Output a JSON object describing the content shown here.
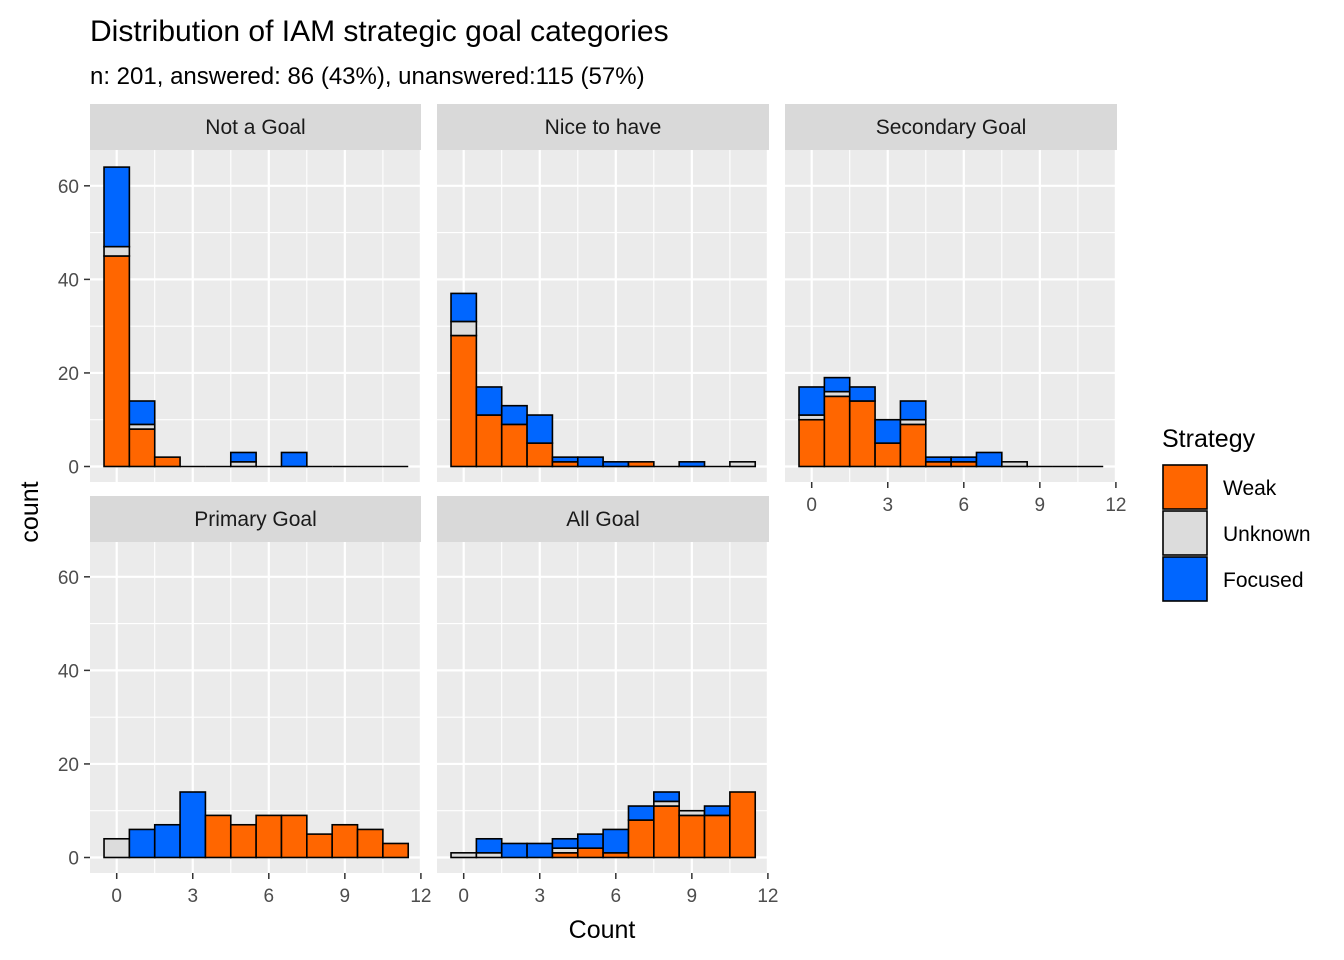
{
  "chart_data": {
    "type": "bar",
    "title": "Distribution of IAM strategic goal categories",
    "subtitle": "n: 201, answered: 86 (43%), unanswered:115 (57%)",
    "xlabel": "Count",
    "ylabel": "count",
    "x_ticks": [
      "0",
      "3",
      "6",
      "9",
      "12"
    ],
    "y_ticks": [
      "0",
      "20",
      "40",
      "60"
    ],
    "xlim": [
      -0.5,
      12
    ],
    "ylim": [
      -3.3,
      68
    ],
    "bins": [
      0,
      1,
      2,
      3,
      4,
      5,
      6,
      7,
      8,
      9,
      10,
      11
    ],
    "grid": true,
    "legend": {
      "title": "Strategy",
      "position": "right",
      "items": [
        {
          "label": "Weak",
          "color": "#FF6600"
        },
        {
          "label": "Unknown",
          "color": "#DCDCDC"
        },
        {
          "label": "Focused",
          "color": "#0066FF"
        }
      ]
    },
    "panels": [
      {
        "name": "Not a Goal",
        "series": [
          {
            "name": "Weak",
            "values": [
              45,
              8,
              2,
              0,
              0,
              0,
              0,
              0,
              0,
              0,
              0,
              0
            ]
          },
          {
            "name": "Unknown",
            "values": [
              2,
              1,
              0,
              0,
              0,
              1,
              0,
              0,
              0,
              0,
              0,
              0
            ]
          },
          {
            "name": "Focused",
            "values": [
              17,
              5,
              0,
              0,
              0,
              2,
              0,
              3,
              0,
              0,
              0,
              0
            ]
          }
        ]
      },
      {
        "name": "Nice to have",
        "series": [
          {
            "name": "Weak",
            "values": [
              28,
              11,
              9,
              5,
              1,
              0,
              0,
              1,
              0,
              0,
              0,
              0
            ]
          },
          {
            "name": "Unknown",
            "values": [
              3,
              0,
              0,
              0,
              0,
              0,
              0,
              0,
              0,
              0,
              0,
              1
            ]
          },
          {
            "name": "Focused",
            "values": [
              6,
              6,
              4,
              6,
              1,
              2,
              1,
              0,
              0,
              1,
              0,
              0
            ]
          }
        ]
      },
      {
        "name": "Secondary Goal",
        "series": [
          {
            "name": "Weak",
            "values": [
              10,
              15,
              14,
              5,
              9,
              1,
              1,
              0,
              0,
              0,
              0,
              0
            ]
          },
          {
            "name": "Unknown",
            "values": [
              1,
              1,
              0,
              0,
              1,
              0,
              0,
              0,
              1,
              0,
              0,
              0
            ]
          },
          {
            "name": "Focused",
            "values": [
              6,
              3,
              3,
              5,
              4,
              1,
              1,
              3,
              0,
              0,
              0,
              0
            ]
          }
        ]
      },
      {
        "name": "Primary Goal",
        "series": [
          {
            "name": "Weak",
            "values": [
              0,
              0,
              0,
              0,
              9,
              7,
              9,
              9,
              5,
              7,
              6,
              3
            ]
          },
          {
            "name": "Unknown",
            "values": [
              4,
              0,
              0,
              0,
              0,
              0,
              0,
              0,
              0,
              0,
              0,
              0
            ]
          },
          {
            "name": "Focused",
            "values": [
              0,
              6,
              7,
              14,
              0,
              0,
              0,
              0,
              0,
              0,
              0,
              0
            ]
          }
        ]
      },
      {
        "name": "All Goal",
        "series": [
          {
            "name": "Weak",
            "values": [
              0,
              0,
              0,
              0,
              1,
              2,
              1,
              8,
              11,
              9,
              9,
              14
            ]
          },
          {
            "name": "Unknown",
            "values": [
              1,
              1,
              0,
              0,
              1,
              0,
              0,
              0,
              1,
              1,
              0,
              0
            ]
          },
          {
            "name": "Focused",
            "values": [
              0,
              3,
              3,
              3,
              2,
              3,
              5,
              3,
              2,
              0,
              2,
              0
            ]
          }
        ]
      }
    ]
  }
}
